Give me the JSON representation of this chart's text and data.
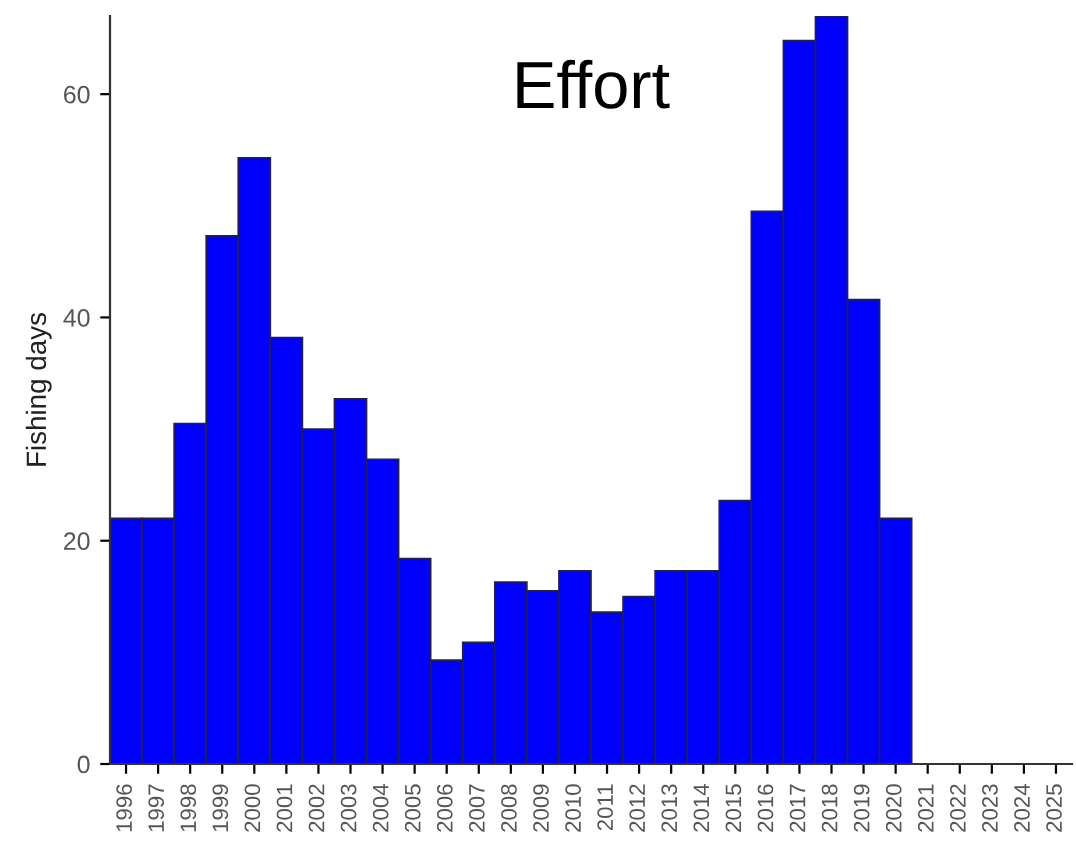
{
  "chart_data": {
    "type": "bar",
    "title": "Effort",
    "ylabel": "Fishing days",
    "categories": [
      "1996",
      "1997",
      "1998",
      "1999",
      "2000",
      "2001",
      "2002",
      "2003",
      "2004",
      "2005",
      "2006",
      "2007",
      "2008",
      "2009",
      "2010",
      "2011",
      "2012",
      "2013",
      "2014",
      "2015",
      "2016",
      "2017",
      "2018",
      "2019",
      "2020",
      "2021",
      "2022",
      "2023",
      "2024",
      "2025"
    ],
    "values": [
      22,
      22,
      30.5,
      47.3,
      54.3,
      38.2,
      30,
      32.7,
      27.3,
      18.4,
      9.3,
      10.9,
      16.3,
      15.5,
      17.3,
      13.6,
      15,
      17.3,
      17.3,
      23.6,
      49.5,
      64.8,
      67,
      41.6,
      22,
      0,
      0,
      0,
      0,
      0
    ],
    "color": "#0000ff",
    "ylim": [
      0,
      67
    ],
    "yticks": [
      0,
      20,
      40,
      60
    ],
    "grid": false,
    "legend": false
  }
}
